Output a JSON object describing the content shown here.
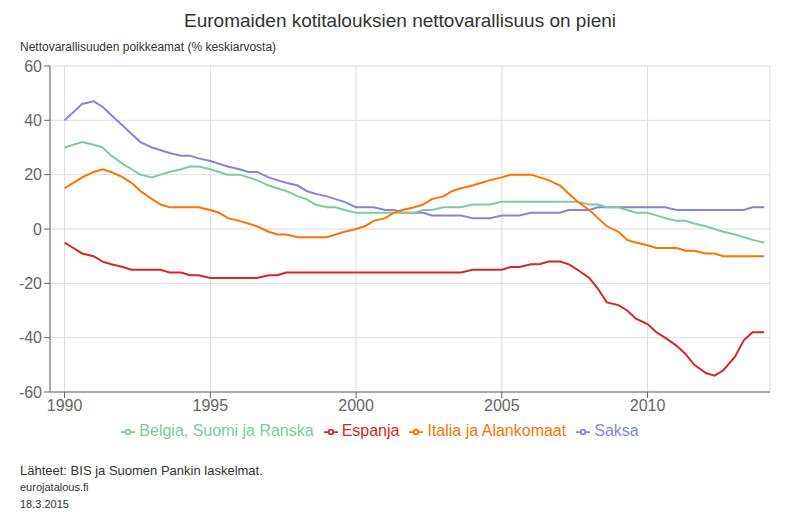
{
  "chart_data": {
    "type": "line",
    "title": "Euromaiden kotitalouksien nettovarallisuus on pieni",
    "y_label": "Nettovarallisuuden poikkeamat (% keskiarvosta)",
    "annotations": [
      "Lähteet: BIS ja Suomen Pankin laskelmat.",
      "eurojatalous.fi",
      "18.3.2015"
    ],
    "grid": true,
    "xlim": [
      1989.5,
      2014.2
    ],
    "xticks": [
      1990,
      1995,
      2000,
      2005,
      2010
    ],
    "ylim": [
      -60,
      60
    ],
    "yticks": [
      -60,
      -40,
      -20,
      0,
      20,
      40,
      60
    ],
    "x": [
      1990,
      1990.3,
      1990.6,
      1991.0,
      1991.3,
      1991.6,
      1992.0,
      1992.3,
      1992.6,
      1993.0,
      1993.3,
      1993.6,
      1994.0,
      1994.3,
      1994.6,
      1995.0,
      1995.3,
      1995.6,
      1996.0,
      1996.3,
      1996.6,
      1997.0,
      1997.3,
      1997.6,
      1998.0,
      1998.3,
      1998.6,
      1999.0,
      1999.3,
      1999.6,
      2000.0,
      2000.3,
      2000.6,
      2001.0,
      2001.3,
      2001.6,
      2002.0,
      2002.3,
      2002.6,
      2003.0,
      2003.3,
      2003.6,
      2004.0,
      2004.3,
      2004.6,
      2005.0,
      2005.3,
      2005.6,
      2006.0,
      2006.3,
      2006.6,
      2007.0,
      2007.3,
      2007.6,
      2008.0,
      2008.3,
      2008.6,
      2009.0,
      2009.3,
      2009.6,
      2010.0,
      2010.3,
      2010.6,
      2011.0,
      2011.3,
      2011.6,
      2012.0,
      2012.3,
      2012.6,
      2013.0,
      2013.3,
      2013.6,
      2014.0
    ],
    "series": [
      {
        "name": "Saksa",
        "color": "#8884d8",
        "values": [
          40,
          43,
          46,
          47,
          45,
          42,
          38,
          35,
          32,
          30,
          29,
          28,
          27,
          27,
          26,
          25,
          24,
          23,
          22,
          21,
          21,
          19,
          18,
          17,
          16,
          14,
          13,
          12,
          11,
          10,
          8,
          8,
          8,
          7,
          7,
          6,
          6,
          6,
          5,
          5,
          5,
          5,
          4,
          4,
          4,
          5,
          5,
          5,
          6,
          6,
          6,
          6,
          7,
          7,
          7,
          8,
          8,
          8,
          8,
          8,
          8,
          8,
          8,
          7,
          7,
          7,
          7,
          7,
          7,
          7,
          7,
          8,
          8
        ]
      },
      {
        "name": "Belgia, Suomi ja Ranska",
        "color": "#82ca9d",
        "values": [
          30,
          31,
          32,
          31,
          30,
          27,
          24,
          22,
          20,
          19,
          20,
          21,
          22,
          23,
          23,
          22,
          21,
          20,
          20,
          19,
          18,
          16,
          15,
          14,
          12,
          11,
          9,
          8,
          8,
          7,
          6,
          6,
          6,
          6,
          6,
          6,
          6,
          7,
          7,
          8,
          8,
          8,
          9,
          9,
          9,
          10,
          10,
          10,
          10,
          10,
          10,
          10,
          10,
          10,
          9,
          9,
          8,
          8,
          7,
          6,
          6,
          5,
          4,
          3,
          3,
          2,
          1,
          0,
          -1,
          -2,
          -3,
          -4,
          -5
        ]
      },
      {
        "name": "Italia ja Alankomaat",
        "color": "#ff7300",
        "values": [
          15,
          17,
          19,
          21,
          22,
          21,
          19,
          17,
          14,
          11,
          9,
          8,
          8,
          8,
          8,
          7,
          6,
          4,
          3,
          2,
          1,
          -1,
          -2,
          -2,
          -3,
          -3,
          -3,
          -3,
          -2,
          -1,
          0,
          1,
          3,
          4,
          6,
          7,
          8,
          9,
          11,
          12,
          14,
          15,
          16,
          17,
          18,
          19,
          20,
          20,
          20,
          19,
          18,
          16,
          13,
          10,
          7,
          4,
          1,
          -1,
          -4,
          -5,
          -6,
          -7,
          -7,
          -7,
          -8,
          -8,
          -9,
          -9,
          -10,
          -10,
          -10,
          -10,
          -10
        ]
      },
      {
        "name": "Espanja",
        "color": "#d62728",
        "values": [
          -5,
          -7,
          -9,
          -10,
          -12,
          -13,
          -14,
          -15,
          -15,
          -15,
          -15,
          -16,
          -16,
          -17,
          -17,
          -18,
          -18,
          -18,
          -18,
          -18,
          -18,
          -17,
          -17,
          -16,
          -16,
          -16,
          -16,
          -16,
          -16,
          -16,
          -16,
          -16,
          -16,
          -16,
          -16,
          -16,
          -16,
          -16,
          -16,
          -16,
          -16,
          -16,
          -15,
          -15,
          -15,
          -15,
          -14,
          -14,
          -13,
          -13,
          -12,
          -12,
          -13,
          -15,
          -18,
          -22,
          -27,
          -28,
          -30,
          -33,
          -35,
          -38,
          -40,
          -43,
          -46,
          -50,
          -53,
          -54,
          -52,
          -47,
          -41,
          -38,
          -38
        ]
      }
    ]
  }
}
